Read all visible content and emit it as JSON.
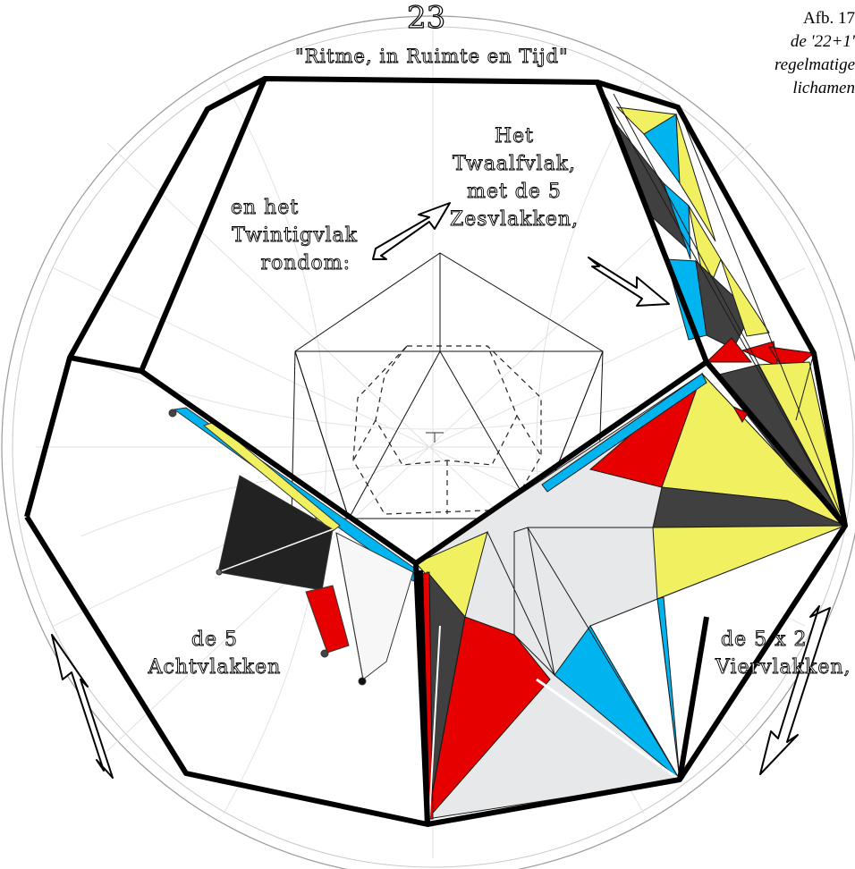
{
  "page_number": "23",
  "title": "\"Ritme, in Ruimte en Tijd\"",
  "caption": {
    "fig_label": "Afb. 17",
    "lines": [
      "de '22+1'",
      "regelmatige",
      "lichamen"
    ]
  },
  "labels": {
    "twaalfvlak": [
      "Het",
      "Twaalfvlak,",
      "met de 5",
      "Zesvlakken,"
    ],
    "twintigvlak": [
      "en het",
      "Twintigvlak",
      "rondom:"
    ],
    "achtvlakken": [
      "de 5",
      "Achtvlakken"
    ],
    "viervlakken": [
      "de  5 x 2",
      "Viervlakken,"
    ]
  },
  "colors": {
    "red": "#e60000",
    "blue": "#00b4f0",
    "yellow": "#f0f060",
    "dark": "#404040",
    "black": "#222222",
    "light": "#e6e8ea",
    "white": "#ffffff"
  }
}
